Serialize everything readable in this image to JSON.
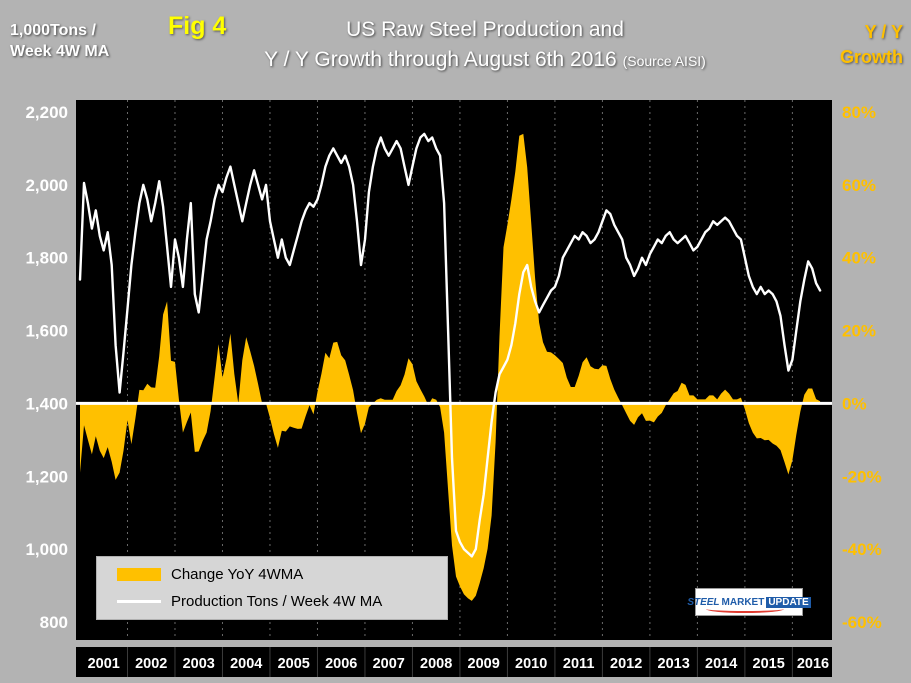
{
  "fig_label": "Fig 4",
  "title_line1": "US Raw Steel Production and",
  "title_line2": "Y / Y Growth through August 6th 2016",
  "title_source": "(Source AISI)",
  "left_axis_title_line1": "1,000Tons /",
  "left_axis_title_line2": "Week 4W MA",
  "right_axis_title_line1": "Y / Y",
  "right_axis_title_line2": "Growth",
  "legend": {
    "yoy": "Change YoY 4WMA",
    "production": "Production Tons / Week 4W MA"
  },
  "logo": {
    "steel": "STEEL",
    "market": "MARKET",
    "update": "UPDATE"
  },
  "colors": {
    "gold": "#FFC000",
    "fig_yellow": "#FFFF00",
    "white_line": "#FFFFFF",
    "plot_bg": "#000000",
    "page_bg": "#B3B3B3",
    "logo_blue": "#1F5CA9",
    "logo_red": "#E03C31"
  },
  "chart_data": {
    "type": "line+area",
    "title": "US Raw Steel Production and Y/Y Growth through August 6th 2016 (Source AISI)",
    "x_start": 2001.0,
    "x_step_years": 0.0833333,
    "x_year_labels": [
      "2001",
      "2002",
      "2003",
      "2004",
      "2005",
      "2006",
      "2007",
      "2008",
      "2009",
      "2010",
      "2011",
      "2012",
      "2013",
      "2014",
      "2015",
      "2016"
    ],
    "left_axis": {
      "label": "1,000 Tons / Week 4W MA",
      "min": 800,
      "max": 2200,
      "tick_step": 200
    },
    "right_axis": {
      "label": "Y/Y Growth",
      "min": -60,
      "max": 80,
      "tick_step": 20,
      "unit": "%"
    },
    "grid": "vertical-dashed-yearly",
    "legend_position": "bottom-left-inside",
    "series": [
      {
        "name": "Production Tons / Week 4W MA",
        "axis": "left",
        "style": "line",
        "color": "#FFFFFF",
        "values": [
          1740,
          2005,
          1950,
          1880,
          1930,
          1860,
          1820,
          1870,
          1780,
          1560,
          1430,
          1540,
          1660,
          1780,
          1870,
          1950,
          2000,
          1960,
          1900,
          1950,
          2010,
          1940,
          1830,
          1720,
          1850,
          1800,
          1720,
          1850,
          1950,
          1700,
          1650,
          1750,
          1850,
          1900,
          1960,
          2000,
          1980,
          2020,
          2050,
          2000,
          1950,
          1900,
          1950,
          2000,
          2040,
          2000,
          1960,
          2000,
          1900,
          1850,
          1800,
          1850,
          1800,
          1780,
          1820,
          1860,
          1900,
          1930,
          1950,
          1940,
          1960,
          2000,
          2050,
          2080,
          2100,
          2080,
          2060,
          2080,
          2050,
          2000,
          1900,
          1780,
          1850,
          1980,
          2050,
          2100,
          2130,
          2100,
          2080,
          2100,
          2120,
          2100,
          2050,
          2000,
          2050,
          2100,
          2130,
          2140,
          2120,
          2130,
          2100,
          2080,
          1950,
          1600,
          1250,
          1050,
          1020,
          1000,
          990,
          980,
          1000,
          1080,
          1150,
          1250,
          1350,
          1430,
          1480,
          1500,
          1520,
          1560,
          1620,
          1700,
          1760,
          1780,
          1720,
          1680,
          1650,
          1670,
          1690,
          1710,
          1720,
          1750,
          1800,
          1820,
          1840,
          1860,
          1850,
          1870,
          1860,
          1840,
          1850,
          1870,
          1900,
          1930,
          1920,
          1890,
          1870,
          1850,
          1800,
          1780,
          1750,
          1770,
          1800,
          1780,
          1810,
          1830,
          1850,
          1840,
          1860,
          1870,
          1850,
          1840,
          1850,
          1860,
          1840,
          1820,
          1830,
          1850,
          1870,
          1880,
          1900,
          1890,
          1900,
          1910,
          1900,
          1880,
          1860,
          1850,
          1800,
          1750,
          1720,
          1700,
          1720,
          1700,
          1710,
          1700,
          1680,
          1640,
          1560,
          1490,
          1520,
          1600,
          1680,
          1740,
          1790,
          1770,
          1730,
          1710
        ]
      },
      {
        "name": "Change YoY 4WMA",
        "axis": "right",
        "style": "area",
        "color": "#FFC000",
        "values": [
          -19,
          -6,
          -10,
          -14,
          -9,
          -13,
          -15,
          -12,
          -16,
          -21,
          -19,
          -13,
          -4.6,
          -11.2,
          -4.1,
          3.7,
          3.6,
          5.4,
          4.4,
          4.3,
          12.9,
          24.4,
          28.0,
          11.7,
          11.4,
          1.1,
          -8.0,
          -5.1,
          -2.5,
          -13.3,
          -13.2,
          -10.3,
          -8.0,
          -2.1,
          7.1,
          16.3,
          7.0,
          12.2,
          19.2,
          8.1,
          0,
          11.8,
          18.2,
          14.3,
          10.3,
          5.3,
          0,
          0,
          -4.0,
          -8.4,
          -12.2,
          -7.5,
          -7.7,
          -6.3,
          -6.7,
          -7.0,
          -6.9,
          -3.5,
          -0.5,
          -3.0,
          3.2,
          8.1,
          13.9,
          12.4,
          16.7,
          16.9,
          13.2,
          11.8,
          7.9,
          3.6,
          -2.6,
          -8.2,
          -5.6,
          -1.0,
          0,
          1.0,
          1.4,
          1.0,
          1.0,
          1.0,
          3.4,
          5.0,
          7.9,
          12.4,
          10.8,
          6.1,
          3.9,
          1.9,
          -0.5,
          1.4,
          1.0,
          -1.0,
          -8.0,
          -23.8,
          -39.0,
          -47.5,
          -50.2,
          -52.4,
          -53.5,
          -54.2,
          -52.8,
          -49.3,
          -45.2,
          -39.9,
          -30.8,
          -10.6,
          18.4,
          42.9,
          49.0,
          56.0,
          63.6,
          73.5,
          74.0,
          64.8,
          49.6,
          34.4,
          22.2,
          16.8,
          14.2,
          14.0,
          13.2,
          12.2,
          11.1,
          7.1,
          4.5,
          4.5,
          7.6,
          11.3,
          12.7,
          10.2,
          9.5,
          9.4,
          10.5,
          10.3,
          6.7,
          3.8,
          1.6,
          -0.5,
          -2.7,
          -4.8,
          -5.9,
          -3.8,
          -2.7,
          -4.8,
          -4.7,
          -5.2,
          -3.6,
          -2.6,
          -0.5,
          1.1,
          2.8,
          3.4,
          5.7,
          5.1,
          2.2,
          2.2,
          1.1,
          1.1,
          1.1,
          2.2,
          2.2,
          1.1,
          2.7,
          3.8,
          2.7,
          1.1,
          1.1,
          1.6,
          -1.6,
          -5.4,
          -8.0,
          -9.6,
          -9.5,
          -10.1,
          -10.0,
          -11.0,
          -11.6,
          -12.8,
          -16.1,
          -19.5,
          -15.6,
          -8.6,
          -2.3,
          2.4,
          4.1,
          4.1,
          1.2,
          0.6
        ]
      }
    ]
  }
}
